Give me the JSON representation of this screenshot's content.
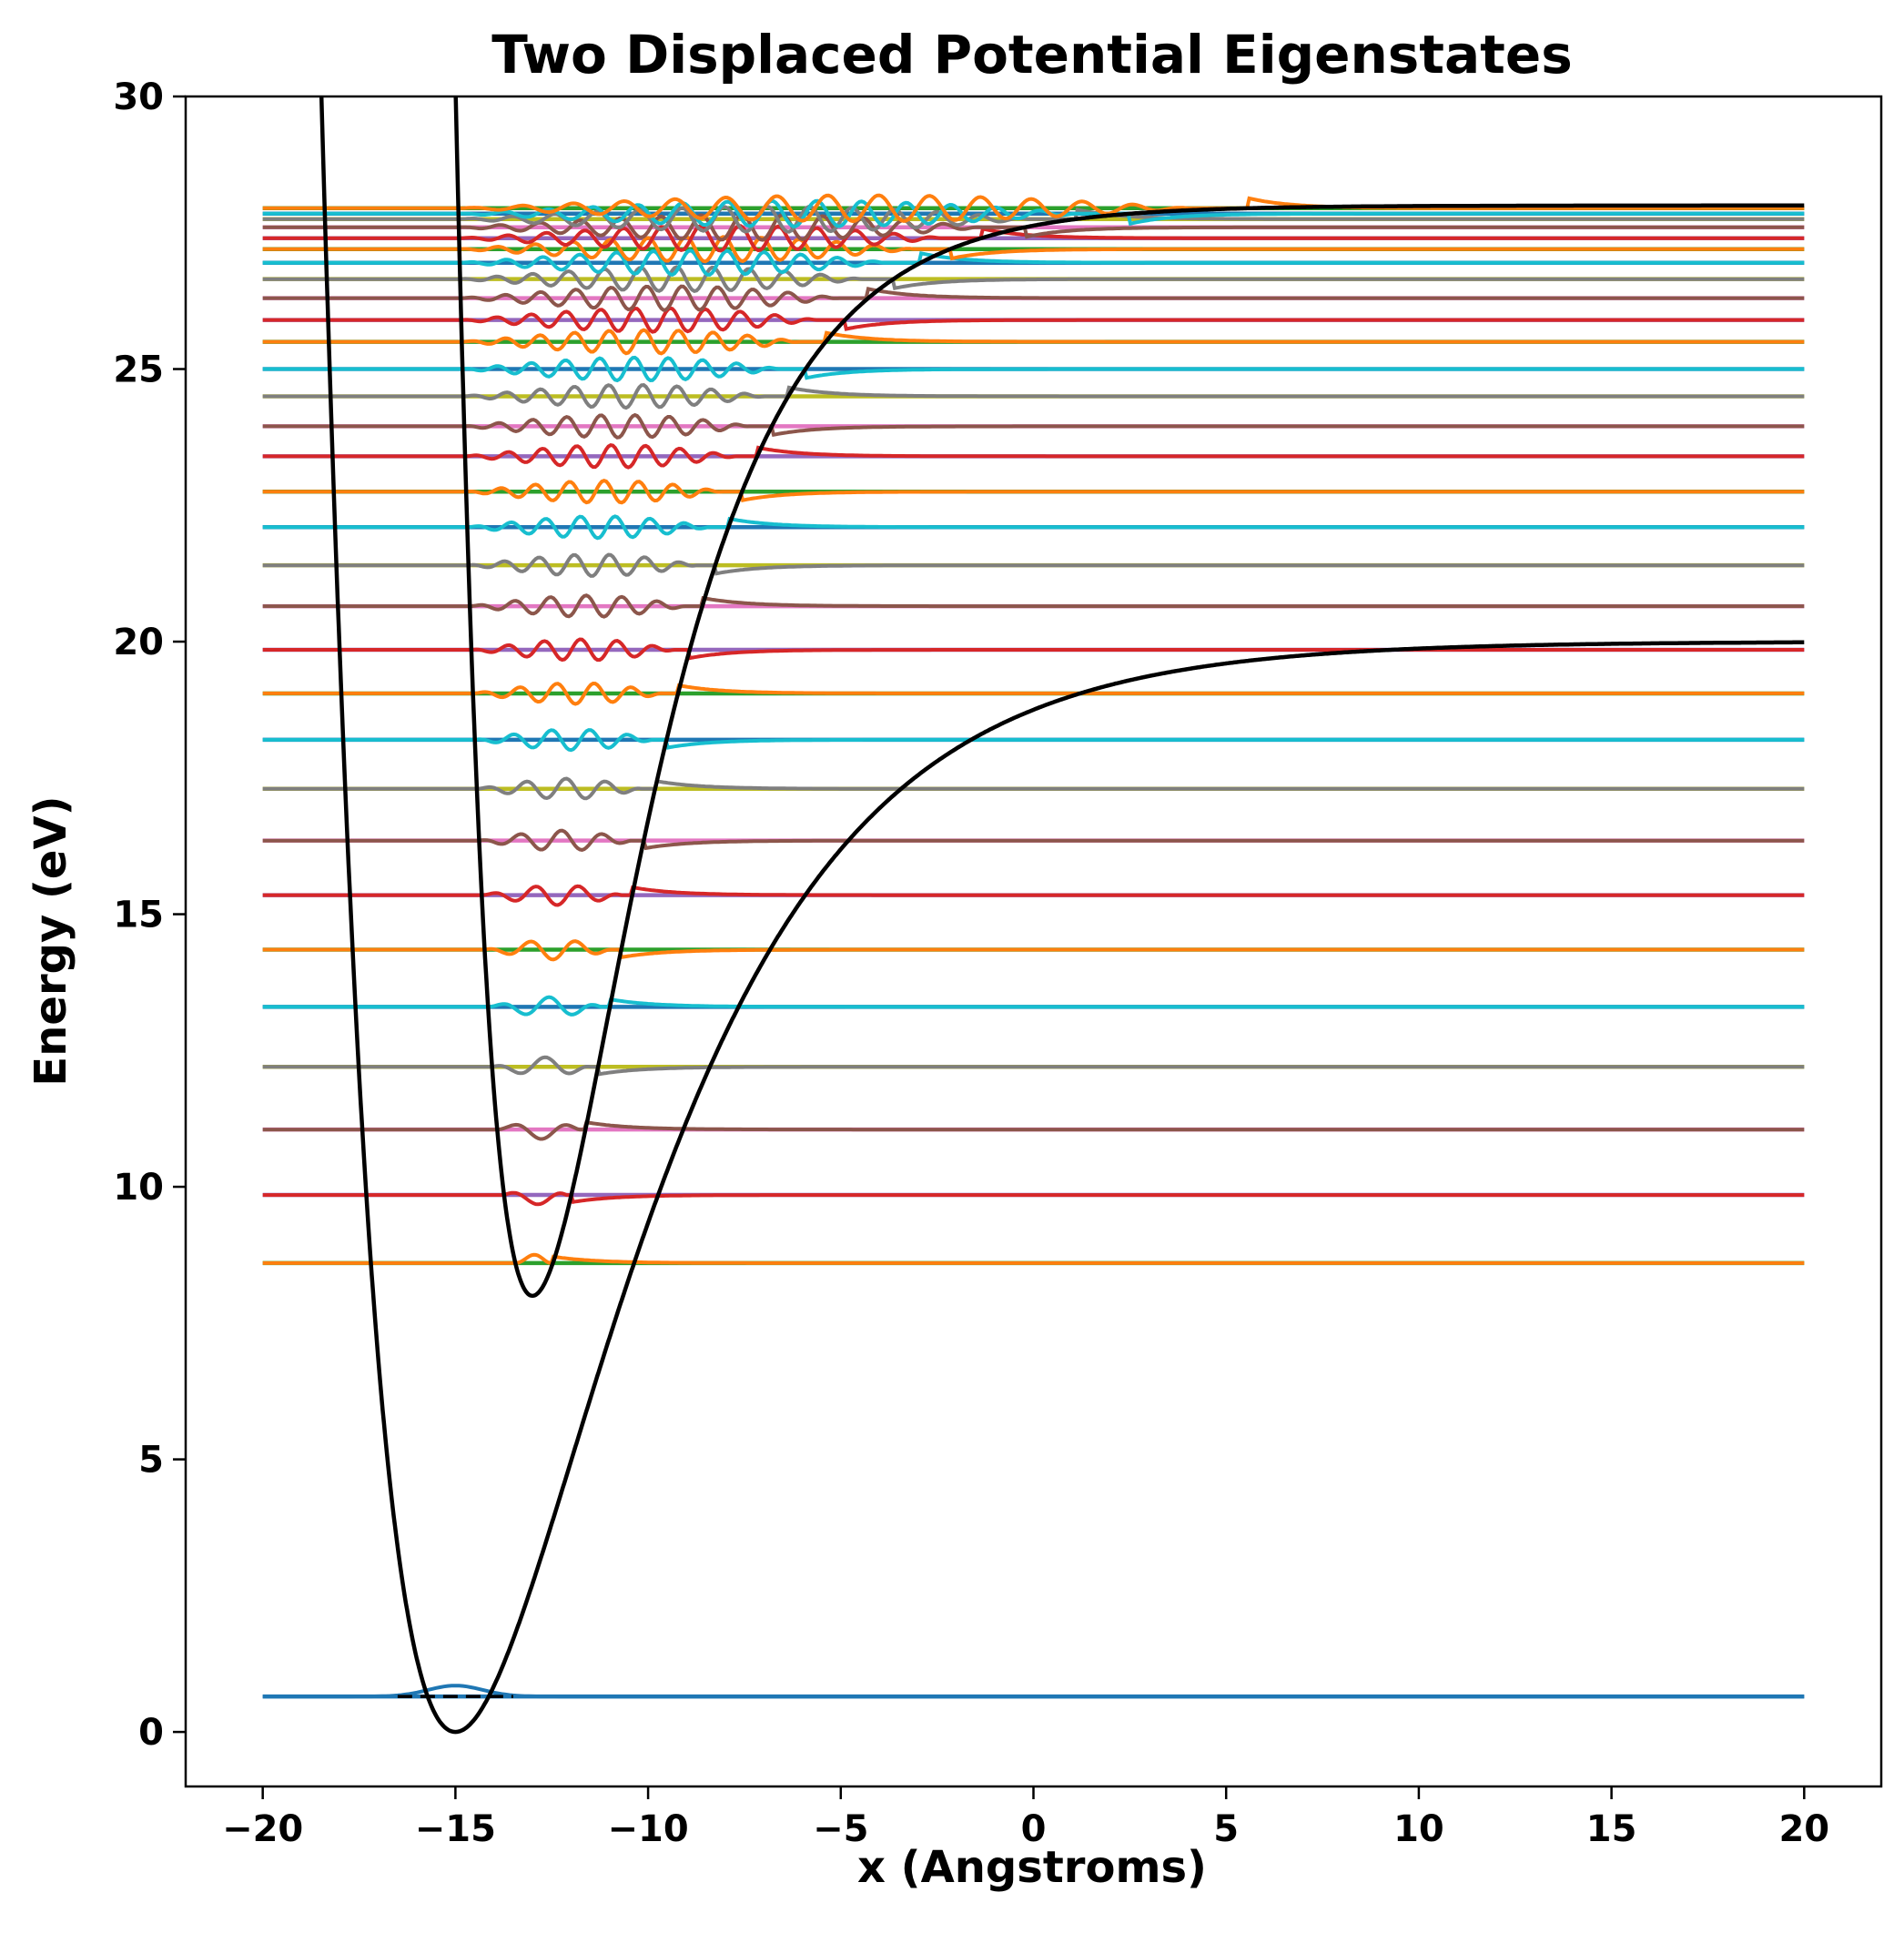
{
  "chart_data": {
    "type": "line",
    "title": "Two Displaced Potential Eigenstates",
    "xlabel": "x (Angstroms)",
    "ylabel": "Energy (eV)",
    "xlim": [
      -22,
      22
    ],
    "ylim": [
      -1,
      30
    ],
    "xticks": [
      -20,
      -15,
      -10,
      -5,
      0,
      5,
      10,
      15,
      20
    ],
    "xtick_labels": [
      "−20",
      "−15",
      "−10",
      "−5",
      "0",
      "5",
      "10",
      "15",
      "20"
    ],
    "yticks": [
      0,
      5,
      10,
      15,
      20,
      25,
      30
    ],
    "ytick_labels": [
      "0",
      "5",
      "10",
      "15",
      "20",
      "25",
      "30"
    ],
    "grid": false,
    "legend": "none",
    "potentials": [
      {
        "name": "lower",
        "min_x": -15,
        "min_energy": 0,
        "dissociation_energy": 20,
        "alpha": 0.23,
        "color": "#000000"
      },
      {
        "name": "upper",
        "min_x": -13,
        "min_energy": 8,
        "dissociation_energy": 20,
        "alpha": 0.36,
        "color": "#000000"
      }
    ],
    "lower_state": {
      "energy": 0.65,
      "color": "#1f77b4"
    },
    "zero_point_marker": {
      "x_range": [
        -16.5,
        -13.5
      ],
      "energy": 0.65,
      "style": "dashed"
    },
    "upper_levels_x_range": [
      -20,
      20
    ],
    "upper_level_energies": [
      8.6,
      9.85,
      11.05,
      12.2,
      13.3,
      14.35,
      15.35,
      16.35,
      17.3,
      18.2,
      19.05,
      19.85,
      20.65,
      21.4,
      22.1,
      22.75,
      23.4,
      23.95,
      24.5,
      25.0,
      25.5,
      25.9,
      26.3,
      26.65,
      26.95,
      27.2,
      27.4,
      27.6,
      27.75,
      27.85,
      27.95
    ],
    "level_colors": [
      "#2ca02c",
      "#9467bd",
      "#e377c2",
      "#bcbd22",
      "#1f77b4"
    ],
    "wave_colors": [
      "#ff7f0e",
      "#d62728",
      "#8c564b",
      "#7f7f7f",
      "#17becf"
    ]
  }
}
